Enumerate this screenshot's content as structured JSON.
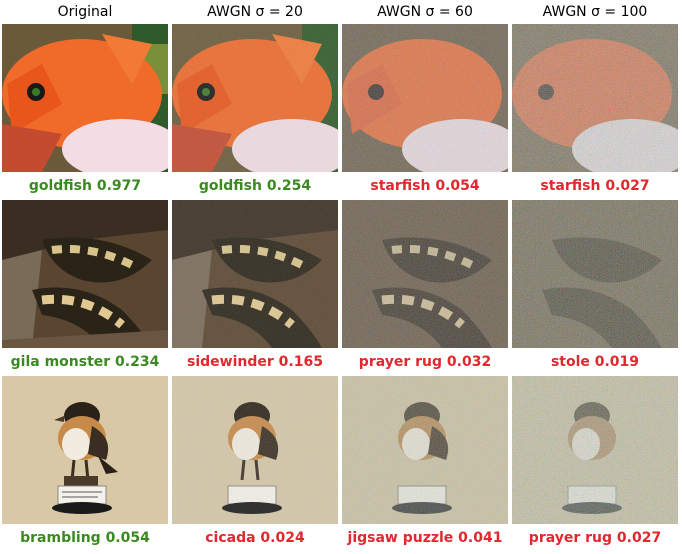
{
  "columns": [
    "Original",
    "AWGN σ = 20",
    "AWGN σ = 60",
    "AWGN σ = 100"
  ],
  "colors": {
    "correct": "#3a8a1f",
    "incorrect": "#e0282e"
  },
  "rows": [
    {
      "subject": "goldfish",
      "predictions": [
        {
          "label": "goldfish 0.977",
          "correct": true
        },
        {
          "label": "goldfish 0.254",
          "correct": true
        },
        {
          "label": "starfish 0.054",
          "correct": false
        },
        {
          "label": "starfish 0.027",
          "correct": false
        }
      ]
    },
    {
      "subject": "gila monster",
      "predictions": [
        {
          "label": "gila monster 0.234",
          "correct": true
        },
        {
          "label": "sidewinder 0.165",
          "correct": false
        },
        {
          "label": "prayer rug 0.032",
          "correct": false
        },
        {
          "label": "stole 0.019",
          "correct": false
        }
      ]
    },
    {
      "subject": "brambling",
      "predictions": [
        {
          "label": "brambling 0.054",
          "correct": true
        },
        {
          "label": "cicada 0.024",
          "correct": false
        },
        {
          "label": "jigsaw puzzle 0.041",
          "correct": false
        },
        {
          "label": "prayer rug 0.027",
          "correct": false
        }
      ]
    }
  ]
}
